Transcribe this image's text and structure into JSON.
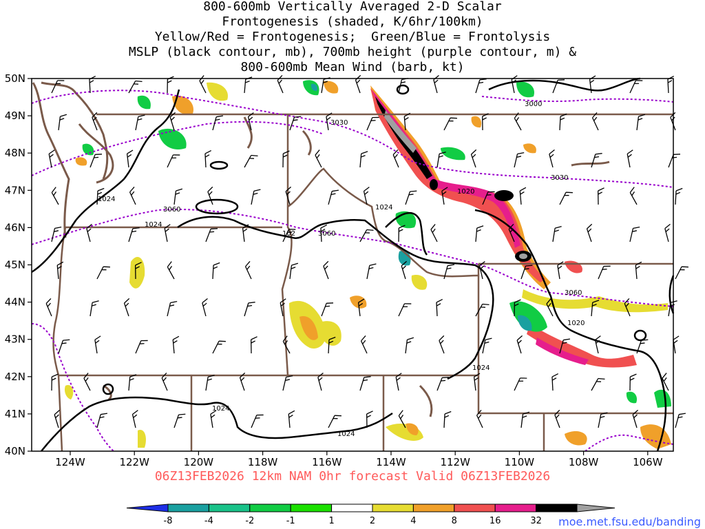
{
  "title_lines": [
    "800-600mb Vertically Averaged 2-D Scalar",
    "Frontogenesis (shaded, K/6hr/100km)",
    "Yellow/Red = Frontogenesis;  Green/Blue = Frontolysis",
    "MSLP (black contour, mb), 700mb height (purple contour, m) &",
    "800-600mb Mean Wind (barb, kt)"
  ],
  "lat_labels": [
    "50N",
    "49N",
    "48N",
    "47N",
    "46N",
    "45N",
    "44N",
    "43N",
    "42N",
    "41N",
    "40N"
  ],
  "lon_labels": [
    "124W",
    "122W",
    "120W",
    "118W",
    "116W",
    "114W",
    "112W",
    "110W",
    "108W",
    "106W"
  ],
  "mslp_labels": [
    "1024",
    "1024",
    "1024",
    "1024",
    "1024",
    "1020",
    "1020",
    "102",
    "1024",
    "1024"
  ],
  "height_labels": [
    "3000",
    "3030",
    "3030",
    "3060",
    "3060",
    "3060"
  ],
  "valid_time": "06Z13FEB2026 12km NAM 0hr forecast Valid 06Z13FEB2026",
  "colorbar": {
    "labels": [
      "-8",
      "-4",
      "-2",
      "-1",
      "1",
      "2",
      "4",
      "8",
      "16",
      "32"
    ],
    "colors": [
      "#1e2fe6",
      "#1aa0a0",
      "#19c289",
      "#11cc44",
      "#1be000",
      "#ffffff",
      "#e6dc32",
      "#f0a02a",
      "#f05050",
      "#e61e8c",
      "#000000",
      "#a0a0a0"
    ]
  },
  "credit": "moe.met.fsu.edu/banding",
  "colors": {
    "mslp": "#000000",
    "height": "#9900cc",
    "borders": "#7a5a4a",
    "frontogenesis_weak": "#e6dc32",
    "frontogenesis_moderate": "#f0a02a",
    "frontogenesis_strong": "#f05050",
    "frontogenesis_intense": "#e61e8c",
    "frontolysis": "#11cc44"
  }
}
